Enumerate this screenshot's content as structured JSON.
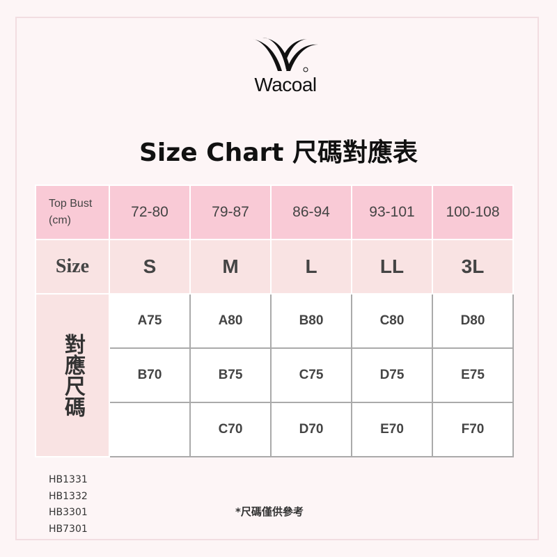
{
  "brand": {
    "name": "Wacoal",
    "logo_icon": "wacoal-logo"
  },
  "title": "Size Chart 尺碼對應表",
  "table": {
    "top_bust_label": "Top Bust (cm)",
    "top_bust": [
      "72-80",
      "79-87",
      "86-94",
      "93-101",
      "100-108"
    ],
    "size_label": "Size",
    "sizes": [
      "S",
      "M",
      "L",
      "LL",
      "3L"
    ],
    "cup_label": "對應尺碼",
    "cups": [
      [
        "A75",
        "A80",
        "B80",
        "C80",
        "D80"
      ],
      [
        "B70",
        "B75",
        "C75",
        "D75",
        "E75"
      ],
      [
        "",
        "C70",
        "D70",
        "E70",
        "F70"
      ]
    ]
  },
  "models": [
    "HB1331",
    "HB1332",
    "HB3301",
    "HB7301"
  ],
  "note": "*尺碼僅供參考",
  "colors": {
    "header": "#f9cad6",
    "size_row": "#f9e3e3",
    "background": "#fdf5f6"
  }
}
